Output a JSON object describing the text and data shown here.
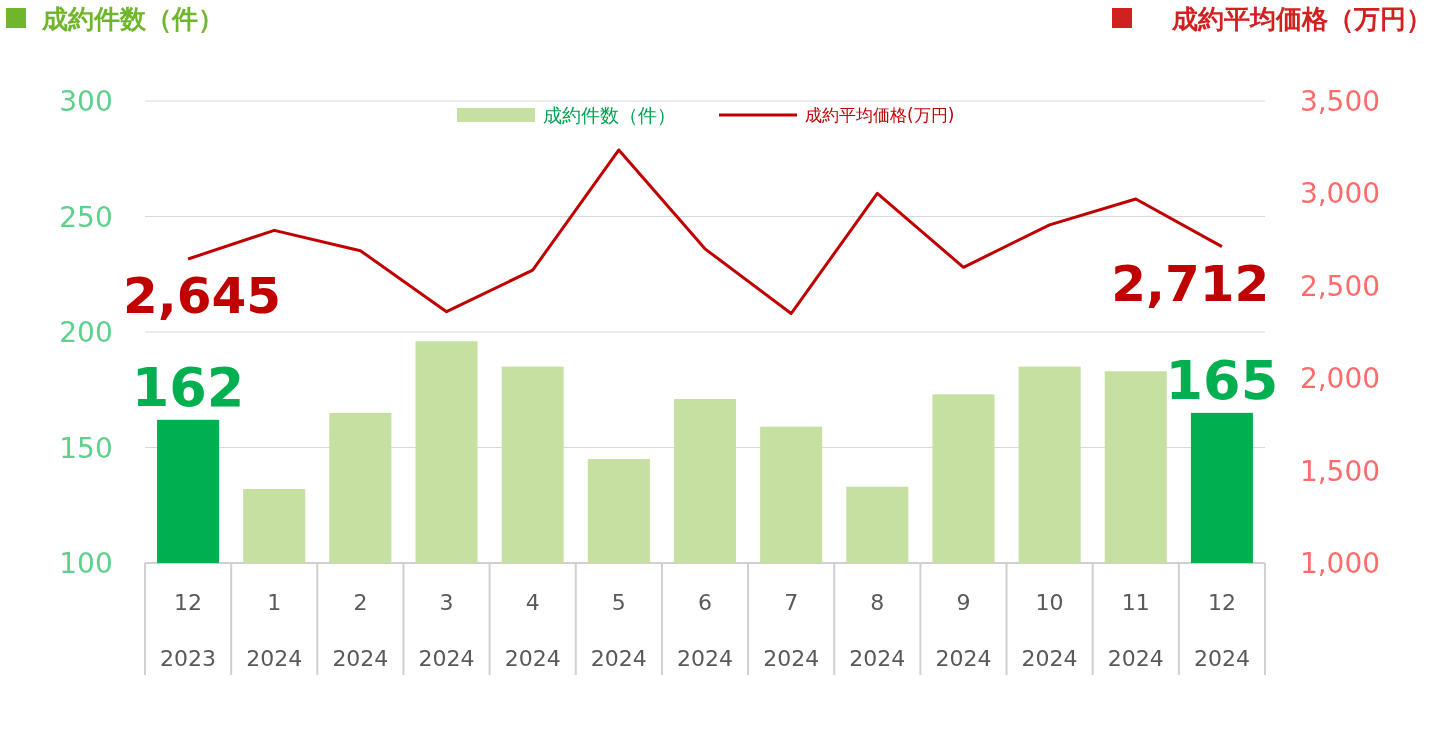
{
  "chart_data": {
    "type": "bar",
    "ylabel": "成約件数（件）",
    "y2label": "成約平均価格（万円）",
    "categories": [
      "12\n2023",
      "1\n2024",
      "2\n2024",
      "3\n2024",
      "4\n2024",
      "5\n2024",
      "6\n2024",
      "7\n2024",
      "8\n2024",
      "9\n2024",
      "10\n2024",
      "11\n2024",
      "12\n2024"
    ],
    "series": [
      {
        "name": "成約件数（件）",
        "color": "#c5e0a0",
        "colors": [
          "#00b050",
          "#c5e0a0",
          "#c5e0a0",
          "#c5e0a0",
          "#c5e0a0",
          "#c5e0a0",
          "#c5e0a0",
          "#c5e0a0",
          "#c5e0a0",
          "#c5e0a0",
          "#c5e0a0",
          "#c5e0a0",
          "#00b050"
        ],
        "values": [
          162,
          132,
          165,
          196,
          185,
          145,
          171,
          159,
          133,
          173,
          185,
          183,
          165
        ],
        "value_labels": [
          "162",
          null,
          null,
          null,
          null,
          null,
          null,
          null,
          null,
          null,
          null,
          null,
          "165"
        ]
      },
      {
        "name": "成約平均価格(万円)",
        "type": "line",
        "axis": "y2",
        "color": "#c00000",
        "values": [
          2645,
          2800,
          2690,
          2360,
          2585,
          3235,
          2700,
          2350,
          3000,
          2600,
          2830,
          2970,
          2712
        ],
        "value_labels": [
          "2,645",
          null,
          null,
          null,
          null,
          null,
          null,
          null,
          null,
          null,
          null,
          null,
          "2,712"
        ]
      }
    ],
    "ylim": [
      100,
      300
    ],
    "yticks": [
      100,
      150,
      200,
      250,
      300
    ],
    "y2lim": [
      1000,
      3500
    ],
    "y2ticks": [
      {
        "value": 1000,
        "label": "1,000"
      },
      {
        "value": 1500,
        "label": "1,500"
      },
      {
        "value": 2000,
        "label": "2,000"
      },
      {
        "value": 2500,
        "label": "2,500"
      },
      {
        "value": 3000,
        "label": "3,000"
      },
      {
        "value": 3500,
        "label": "3,500"
      }
    ],
    "grid": "y",
    "legend": "top",
    "marker": "none",
    "line_style": "solid"
  }
}
